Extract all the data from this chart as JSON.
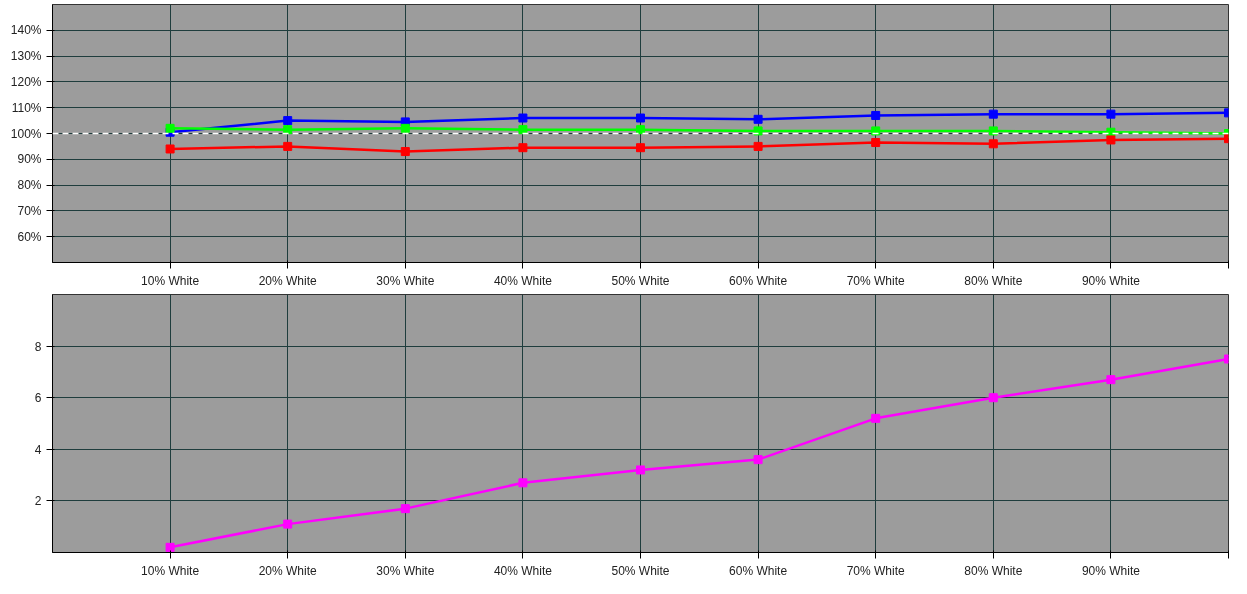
{
  "chart_data": [
    {
      "type": "line",
      "categories": [
        "10% White",
        "20% White",
        "30% White",
        "40% White",
        "50% White",
        "60% White",
        "70% White",
        "80% White",
        "90% White",
        null
      ],
      "series": [
        {
          "color": "#0000ff",
          "values": [
            100.5,
            105,
            104.5,
            106,
            106,
            105.5,
            107,
            107.5,
            107.5,
            108
          ]
        },
        {
          "color": "#00ff00",
          "values": [
            102,
            101.5,
            102,
            101.5,
            101.5,
            101,
            101,
            101,
            100.5,
            100
          ]
        },
        {
          "color": "#ff0000",
          "values": [
            94,
            95,
            93,
            94.5,
            94.5,
            95,
            96.5,
            96,
            97.5,
            98
          ]
        }
      ],
      "ylim": [
        50,
        150
      ],
      "yticks": [
        {
          "value": 60,
          "label": "60%"
        },
        {
          "value": 70,
          "label": "70%"
        },
        {
          "value": 80,
          "label": "80%"
        },
        {
          "value": 90,
          "label": "90%"
        },
        {
          "value": 100,
          "label": "100%"
        },
        {
          "value": 110,
          "label": "110%"
        },
        {
          "value": 120,
          "label": "120%"
        },
        {
          "value": 130,
          "label": "130%"
        },
        {
          "value": 140,
          "label": "140%"
        }
      ],
      "ref_lines": [
        {
          "axis": "y",
          "value": 100,
          "color": "#ffffff",
          "line_style": "dashed"
        }
      ],
      "grid": true,
      "marker": "square",
      "line_style": "solid"
    },
    {
      "type": "line",
      "categories": [
        "10% White",
        "20% White",
        "30% White",
        "40% White",
        "50% White",
        "60% White",
        "70% White",
        "80% White",
        "90% White",
        null
      ],
      "series": [
        {
          "color": "#ff00ff",
          "values": [
            0.2,
            1.1,
            1.7,
            2.7,
            3.2,
            3.6,
            5.2,
            6.0,
            6.7,
            7.5
          ]
        }
      ],
      "ylim": [
        0,
        10
      ],
      "yticks": [
        2,
        4,
        6,
        8
      ],
      "grid": true,
      "marker": "square",
      "line_style": "solid"
    }
  ]
}
